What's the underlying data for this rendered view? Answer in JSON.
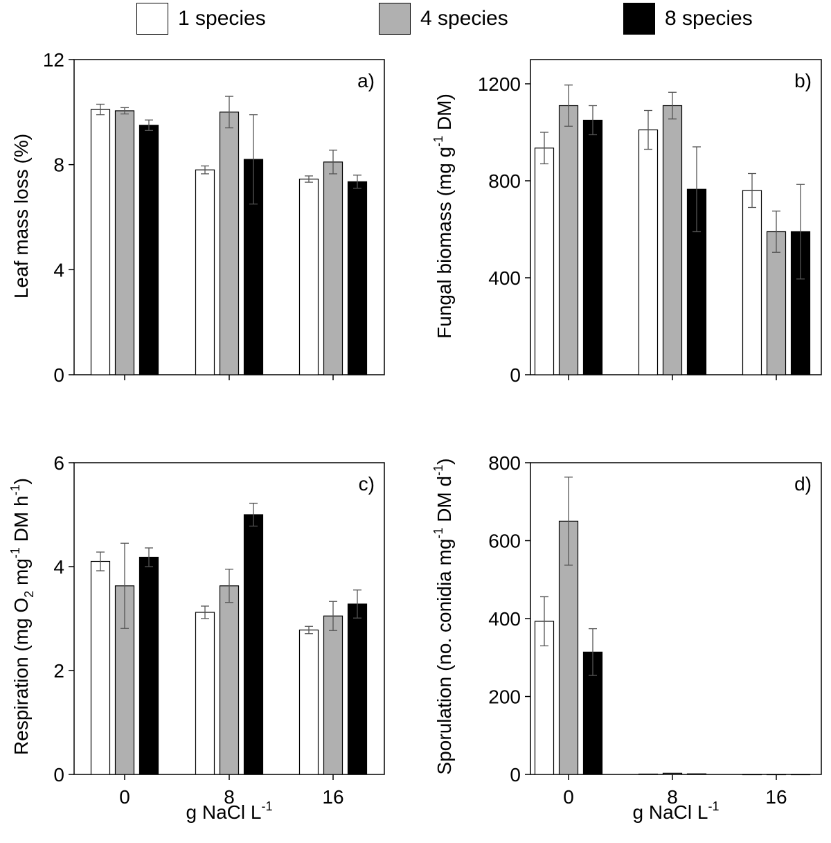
{
  "legend": [
    {
      "label": "1 species",
      "color": "#ffffff"
    },
    {
      "label": "4 species",
      "color": "#b0b0b0"
    },
    {
      "label": "8 species",
      "color": "#000000"
    }
  ],
  "colors": {
    "s1": "#ffffff",
    "s2": "#b0b0b0",
    "s3": "#000000",
    "axis": "#000000",
    "errbar": "#555555"
  },
  "xaxis": {
    "label_main": "g NaCl L",
    "label_sup": "-1"
  },
  "chart_data": [
    {
      "type": "bar",
      "panel": "a)",
      "categories": [
        "0",
        "8",
        "16"
      ],
      "ylabel": "Leaf mass loss (%)",
      "ylim": [
        0,
        12
      ],
      "yticks": [
        0,
        4,
        8,
        12
      ],
      "series": [
        {
          "name": "1 species",
          "values": [
            10.1,
            7.8,
            7.45
          ],
          "errors": [
            0.2,
            0.15,
            0.12
          ]
        },
        {
          "name": "4 species",
          "values": [
            10.05,
            10.0,
            8.1
          ],
          "errors": [
            0.12,
            0.6,
            0.45
          ]
        },
        {
          "name": "8 species",
          "values": [
            9.5,
            8.2,
            7.35
          ],
          "errors": [
            0.2,
            1.7,
            0.25
          ]
        }
      ]
    },
    {
      "type": "bar",
      "panel": "b)",
      "categories": [
        "0",
        "8",
        "16"
      ],
      "ylabel": "Fungal biomass (mg g-1 DM)",
      "ylabel_parts": [
        "Fungal biomass (mg g",
        "-1",
        " DM)"
      ],
      "ylim": [
        0,
        1300
      ],
      "yticks": [
        0,
        400,
        800,
        1200
      ],
      "series": [
        {
          "name": "1 species",
          "values": [
            935,
            1010,
            760
          ],
          "errors": [
            65,
            80,
            70
          ]
        },
        {
          "name": "4 species",
          "values": [
            1110,
            1110,
            590
          ],
          "errors": [
            85,
            55,
            85
          ]
        },
        {
          "name": "8 species",
          "values": [
            1050,
            765,
            590
          ],
          "errors": [
            60,
            175,
            195
          ]
        }
      ]
    },
    {
      "type": "bar",
      "panel": "c)",
      "categories": [
        "0",
        "8",
        "16"
      ],
      "ylabel": "Respiration (mg O2 mg-1 DM h-1)",
      "ylabel_parts": [
        "Respiration (mg O",
        "2",
        " mg",
        "-1",
        " DM h",
        "-1",
        ")"
      ],
      "ylim": [
        0,
        6
      ],
      "yticks": [
        0,
        2,
        4,
        6
      ],
      "series": [
        {
          "name": "1 species",
          "values": [
            4.1,
            3.12,
            2.78
          ],
          "errors": [
            0.18,
            0.12,
            0.07
          ]
        },
        {
          "name": "4 species",
          "values": [
            3.63,
            3.63,
            3.05
          ],
          "errors": [
            0.82,
            0.32,
            0.28
          ]
        },
        {
          "name": "8 species",
          "values": [
            4.18,
            5.0,
            3.28
          ],
          "errors": [
            0.18,
            0.22,
            0.27
          ]
        }
      ]
    },
    {
      "type": "bar",
      "panel": "d)",
      "categories": [
        "0",
        "8",
        "16"
      ],
      "ylabel": "Sporulation (no. conidia mg-1 DM d-1)",
      "ylabel_parts": [
        "Sporulation (no. conidia mg",
        "-1",
        " DM d",
        "-1",
        ")"
      ],
      "ylim": [
        0,
        800
      ],
      "yticks": [
        0,
        200,
        400,
        600,
        800
      ],
      "series": [
        {
          "name": "1 species",
          "values": [
            393,
            1,
            0
          ],
          "errors": [
            63,
            0,
            0
          ]
        },
        {
          "name": "4 species",
          "values": [
            650,
            3,
            0
          ],
          "errors": [
            113,
            0,
            0
          ]
        },
        {
          "name": "8 species",
          "values": [
            314,
            1.5,
            0
          ],
          "errors": [
            60,
            0,
            0
          ]
        }
      ]
    }
  ]
}
